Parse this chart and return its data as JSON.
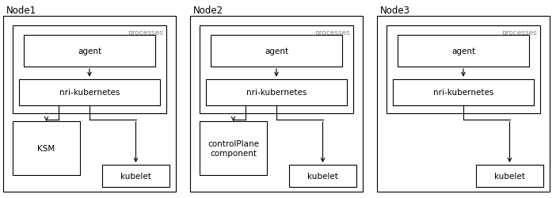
{
  "nodes": [
    {
      "label": "Node1",
      "comp_label": "KSM"
    },
    {
      "label": "Node2",
      "comp_label": "controlPlane\ncomponent"
    },
    {
      "label": "Node3",
      "comp_label": null
    }
  ],
  "bg_color": "#ffffff",
  "ec": "#000000",
  "gray": "#aaaaaa",
  "font_size": 7.5,
  "label_font_size": 8.5,
  "processes_font_size": 6.5
}
